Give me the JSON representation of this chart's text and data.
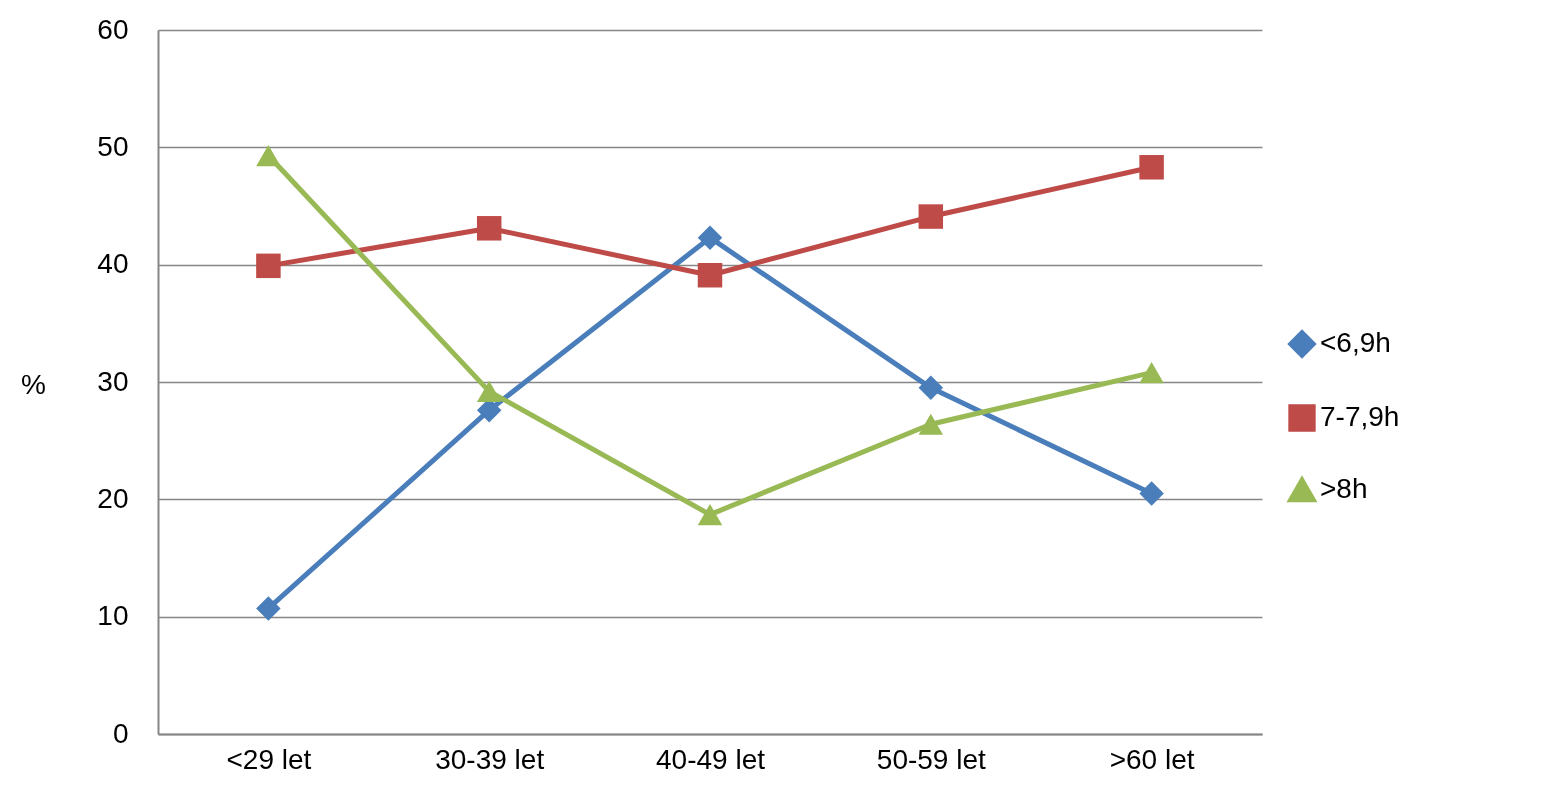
{
  "chart_data": {
    "type": "line",
    "ylabel": "%",
    "categories": [
      "<29 let",
      "30-39 let",
      "40-49 let",
      "50-59 let",
      ">60 let"
    ],
    "series": [
      {
        "name": "<6,9h",
        "color": "#4a7ebb",
        "marker": "diamond",
        "values": [
          10.7,
          27.6,
          42.3,
          29.5,
          20.5
        ]
      },
      {
        "name": "7-7,9h",
        "color": "#be4b48",
        "marker": "square",
        "values": [
          39.9,
          43.1,
          39.1,
          44.1,
          48.3
        ]
      },
      {
        "name": ">8h",
        "color": "#98b954",
        "marker": "triangle",
        "values": [
          49.3,
          29.2,
          18.7,
          26.4,
          30.8
        ]
      }
    ],
    "ylim": [
      0,
      60
    ],
    "yticks": [
      0,
      10,
      20,
      30,
      40,
      50,
      60
    ],
    "grid": "y",
    "legend": "right",
    "line_style": "solid"
  }
}
